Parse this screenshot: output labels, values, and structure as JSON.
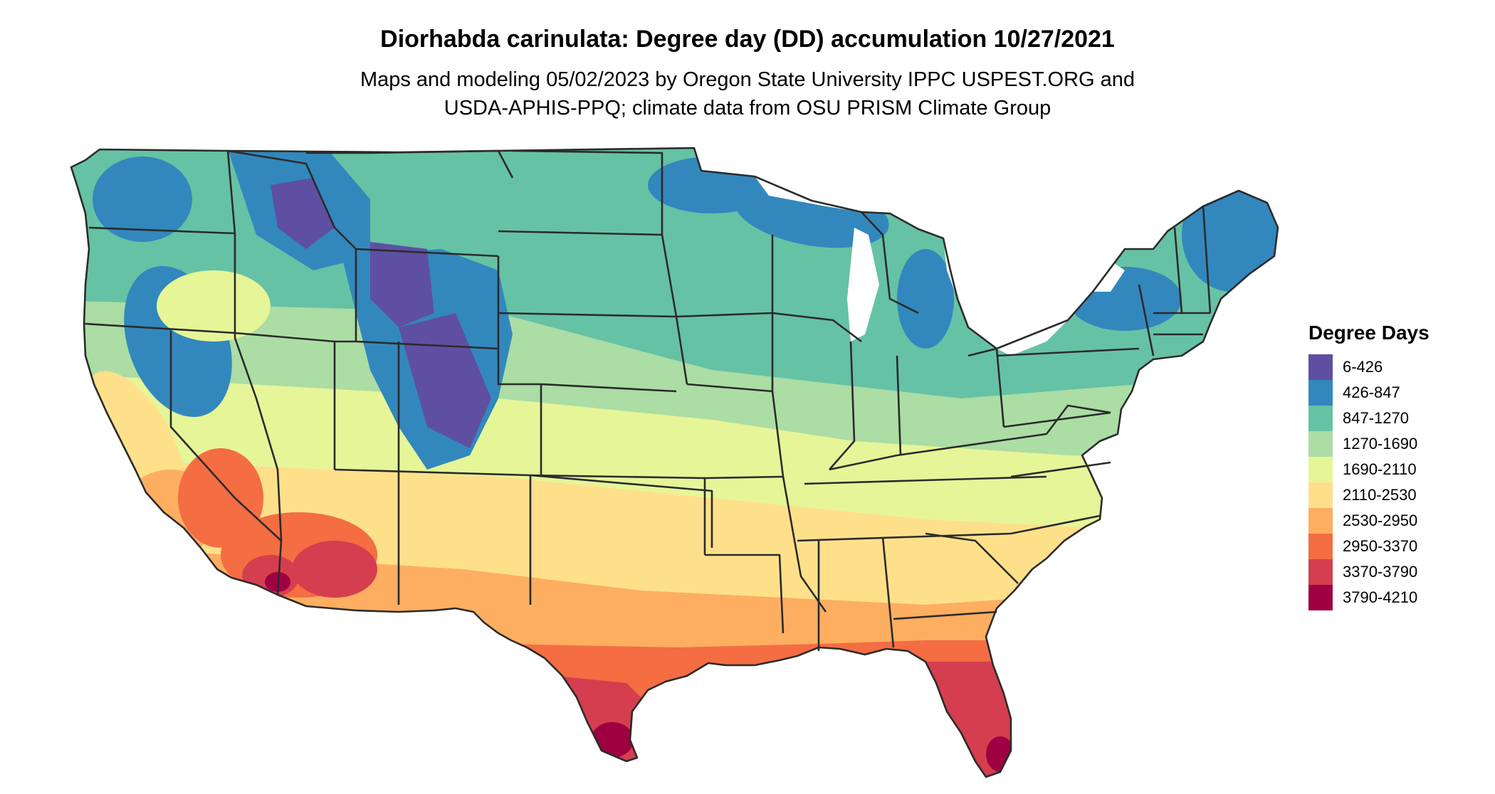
{
  "title": "Diorhabda carinulata: Degree day (DD) accumulation 10/27/2021",
  "subtitle_lines": [
    "Maps and modeling 05/02/2023 by Oregon State University IPPC USPEST.ORG and",
    "USDA-APHIS-PPQ; climate data from OSU PRISM Climate Group"
  ],
  "legend": {
    "title": "Degree Days",
    "items": [
      {
        "label": "6-426",
        "color": "#5e4fa2"
      },
      {
        "label": "426-847",
        "color": "#3288bd"
      },
      {
        "label": "847-1270",
        "color": "#66c2a5"
      },
      {
        "label": "1270-1690",
        "color": "#abdda4"
      },
      {
        "label": "1690-2110",
        "color": "#e6f598"
      },
      {
        "label": "2110-2530",
        "color": "#fee08b"
      },
      {
        "label": "2530-2950",
        "color": "#fdae61"
      },
      {
        "label": "2950-3370",
        "color": "#f46d43"
      },
      {
        "label": "3370-3790",
        "color": "#d53e4f"
      },
      {
        "label": "3790-4210",
        "color": "#9e0142"
      }
    ]
  },
  "map": {
    "region": "contiguous-united-states",
    "border_color": "#2b2b2b",
    "lake_color": "#ffffff"
  }
}
